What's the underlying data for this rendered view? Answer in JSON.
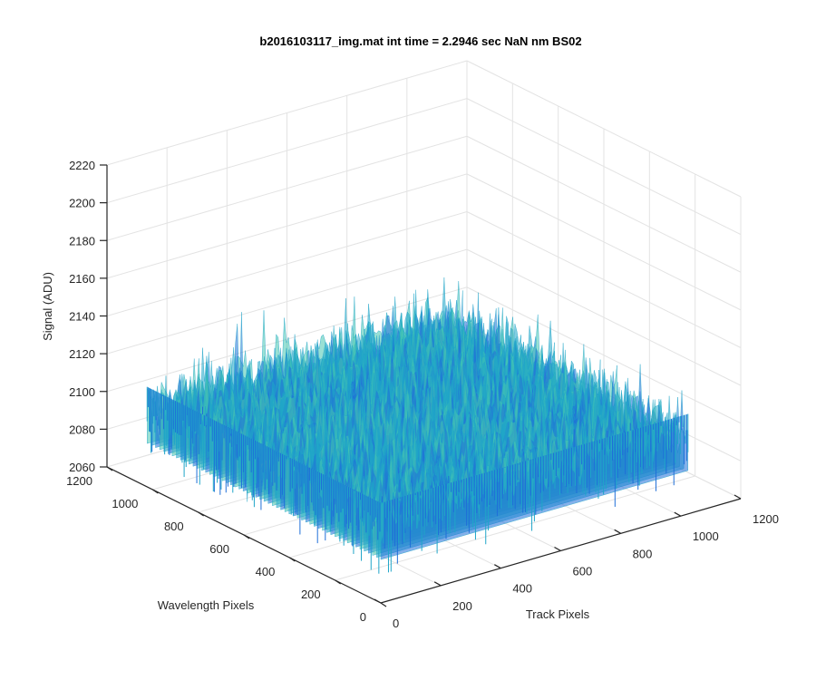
{
  "chart_data": {
    "type": "surface",
    "title": "b2016103117_img.mat int time = 2.2946 sec  NaN nm BS02",
    "xlabel": "Track Pixels",
    "ylabel": "Wavelength Pixels",
    "zlabel": "Signal (ADU)",
    "xlim": [
      0,
      1200
    ],
    "ylim": [
      0,
      1200
    ],
    "zlim": [
      2060,
      2220
    ],
    "xticks": [
      "0",
      "200",
      "400",
      "600",
      "800",
      "1000",
      "1200"
    ],
    "yticks": [
      "0",
      "200",
      "400",
      "600",
      "800",
      "1000",
      "1200"
    ],
    "zticks": [
      "2060",
      "2080",
      "2100",
      "2120",
      "2140",
      "2160",
      "2180",
      "2200",
      "2220"
    ],
    "x_extent": [
      0,
      1024
    ],
    "y_extent": [
      0,
      1024
    ],
    "z_mean": 2105,
    "z_min_approx": 2075,
    "z_max_approx": 2170,
    "grid": true,
    "colormap": "parula",
    "colors": {
      "low": "#1f6fd8",
      "mid": "#1fa5c8",
      "high": "#45c6b0"
    }
  }
}
